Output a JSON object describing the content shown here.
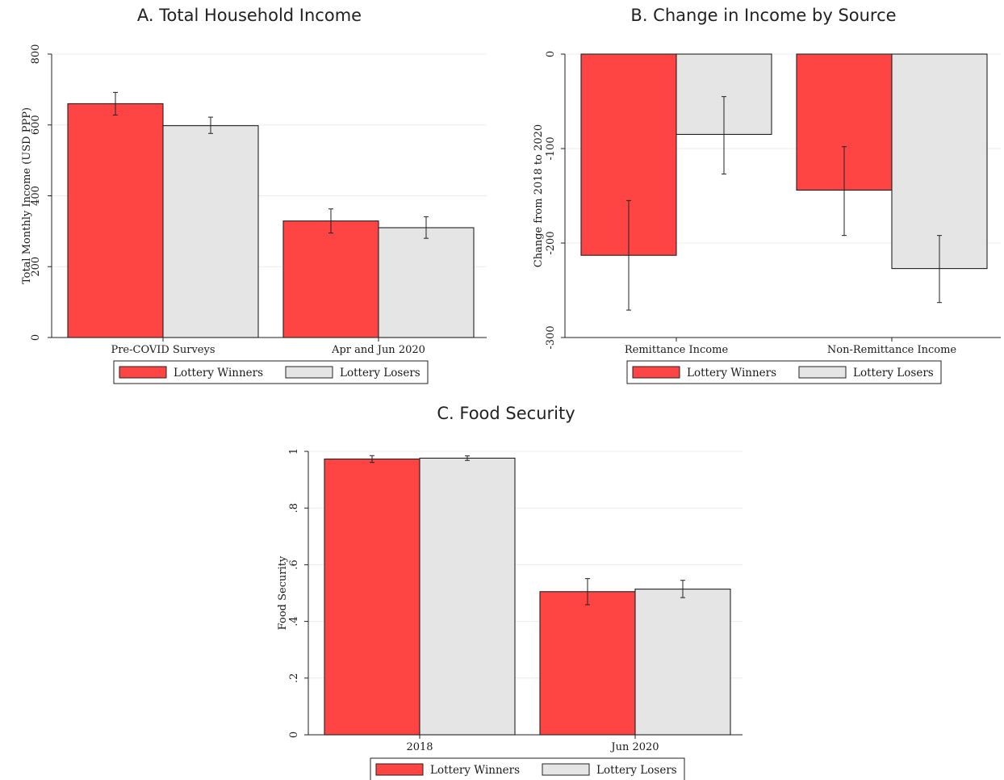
{
  "colors": {
    "winners": "#ff4444",
    "losers": "#e5e5e5",
    "gridline": "#ececec",
    "axis": "#222222"
  },
  "chart_data": [
    {
      "type": "bar",
      "title": "A. Total Household Income",
      "xlabel": "",
      "ylabel": "Total Monthly Income (USD PPP)",
      "ylim": [
        0,
        800
      ],
      "yticks": [
        "0",
        "200",
        "400",
        "600",
        "800"
      ],
      "categories": [
        "Pre-COVID Surveys",
        "Apr and Jun 2020"
      ],
      "series": [
        {
          "name": "Lottery Winners",
          "values": [
            660,
            329
          ],
          "ci_low": [
            628,
            295
          ],
          "ci_high": [
            692,
            363
          ]
        },
        {
          "name": "Lottery Losers",
          "values": [
            598,
            310
          ],
          "ci_low": [
            576,
            280
          ],
          "ci_high": [
            622,
            341
          ]
        }
      ],
      "grid": true,
      "legend": "bottom"
    },
    {
      "type": "bar",
      "title": "B. Change in Income by Source",
      "xlabel": "",
      "ylabel": "Change from 2018 to 2020",
      "ylim": [
        -300,
        0
      ],
      "yticks": [
        "-300",
        "-200",
        "-100",
        "0"
      ],
      "categories": [
        "Remittance Income",
        "Non-Remittance Income"
      ],
      "series": [
        {
          "name": "Lottery Winners",
          "values": [
            -213,
            -144
          ],
          "ci_low": [
            -271,
            -192
          ],
          "ci_high": [
            -155,
            -98
          ]
        },
        {
          "name": "Lottery Losers",
          "values": [
            -85,
            -227
          ],
          "ci_low": [
            -127,
            -263
          ],
          "ci_high": [
            -45,
            -192
          ]
        }
      ],
      "grid": true,
      "legend": "bottom"
    },
    {
      "type": "bar",
      "title": "C. Food Security",
      "xlabel": "",
      "ylabel": "Food Security",
      "ylim": [
        0,
        1
      ],
      "yticks": [
        "0",
        ".2",
        ".4",
        ".6",
        ".8",
        "1"
      ],
      "categories": [
        "2018",
        "Jun 2020"
      ],
      "series": [
        {
          "name": "Lottery Winners",
          "values": [
            0.973,
            0.505
          ],
          "ci_low": [
            0.961,
            0.459
          ],
          "ci_high": [
            0.985,
            0.551
          ]
        },
        {
          "name": "Lottery Losers",
          "values": [
            0.976,
            0.514
          ],
          "ci_low": [
            0.968,
            0.484
          ],
          "ci_high": [
            0.984,
            0.545
          ]
        }
      ],
      "grid": true,
      "legend": "bottom"
    }
  ]
}
